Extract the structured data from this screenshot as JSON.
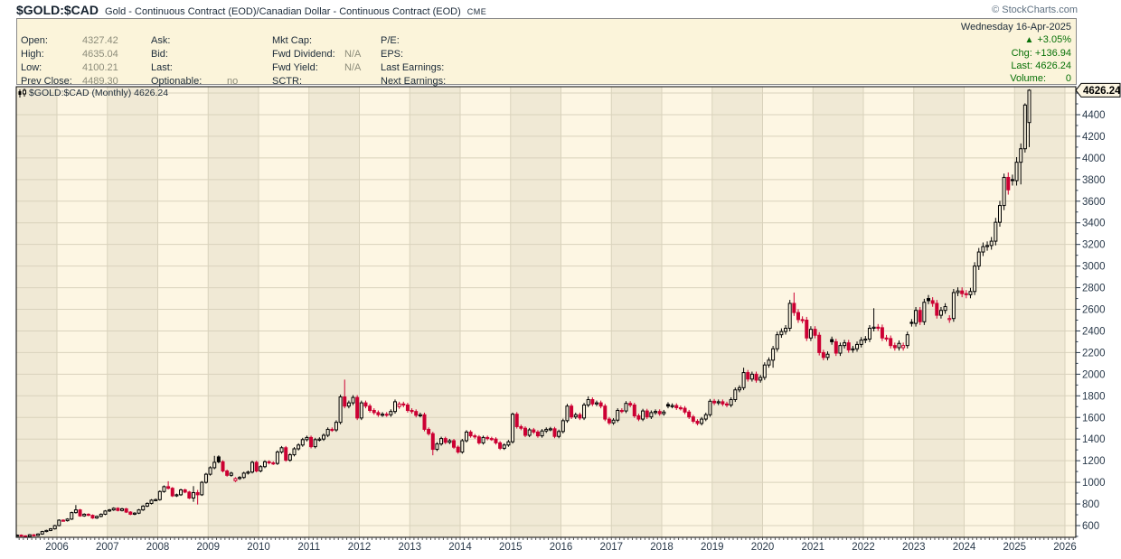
{
  "header": {
    "symbol": "$GOLD:$CAD",
    "description": "Gold - Continuous Contract (EOD)/Canadian Dollar - Continuous Contract (EOD)",
    "exchange": "CME",
    "copyright": "© StockCharts.com"
  },
  "quote_panel": {
    "col1": [
      {
        "label": "Open:",
        "value": "4327.42"
      },
      {
        "label": "High:",
        "value": "4635.04"
      },
      {
        "label": "Low:",
        "value": "4100.21"
      },
      {
        "label": "Prev Close:",
        "value": "4489.30"
      }
    ],
    "col2": [
      {
        "label": "Ask:",
        "value": ""
      },
      {
        "label": "Bid:",
        "value": ""
      },
      {
        "label": "Last:",
        "value": ""
      },
      {
        "label": "Optionable:",
        "value": "no"
      }
    ],
    "col3": [
      {
        "label": "Mkt Cap:",
        "value": ""
      },
      {
        "label": "Fwd Dividend:",
        "value": "N/A"
      },
      {
        "label": "Fwd Yield:",
        "value": "N/A"
      },
      {
        "label": "SCTR:",
        "value": ""
      }
    ],
    "col4": [
      {
        "label": "P/E:",
        "value": ""
      },
      {
        "label": "EPS:",
        "value": ""
      },
      {
        "label": "Last Earnings:",
        "value": ""
      },
      {
        "label": "Next Earnings:",
        "value": ""
      }
    ],
    "right": {
      "date": "Wednesday 16-Apr-2025",
      "direction": "▲",
      "percent": "+3.05%",
      "chg_label": "Chg:",
      "chg_value": "+136.94",
      "last_label": "Last:",
      "last_value": "4626.24",
      "volume_label": "Volume:",
      "volume_value": "0"
    }
  },
  "chart_data": {
    "type": "candlestick",
    "interval": "Monthly",
    "series_label": "$GOLD:$CAD (Monthly) 4626.24",
    "title": "$GOLD:$CAD Gold/Canadian Dollar monthly candlestick chart 2005-2025",
    "last_price": 4626.24,
    "start_year": 2005,
    "first_open": 512,
    "closes_by_year": {
      "2005": [
        510,
        505,
        512,
        505,
        500,
        515,
        508,
        522,
        545,
        555,
        570,
        600
      ],
      "2006": [
        650,
        645,
        660,
        720,
        745,
        690,
        705,
        695,
        670,
        685,
        705,
        735
      ],
      "2007": [
        745,
        760,
        740,
        755,
        725,
        705,
        715,
        745,
        780,
        805,
        835,
        840
      ],
      "2008": [
        915,
        960,
        945,
        875,
        885,
        930,
        910,
        855,
        905,
        885,
        1000,
        1075
      ],
      "2009": [
        1135,
        1185,
        1190,
        1105,
        1065,
        1085,
        1035,
        1045,
        1085,
        1095,
        1185,
        1105
      ],
      "2010": [
        1145,
        1190,
        1180,
        1175,
        1280,
        1320,
        1205,
        1255,
        1310,
        1345,
        1395,
        1415
      ],
      "2011": [
        1330,
        1395,
        1400,
        1435,
        1490,
        1485,
        1555,
        1790,
        1705,
        1735,
        1785,
        1595
      ],
      "2012": [
        1735,
        1705,
        1665,
        1645,
        1625,
        1630,
        1625,
        1655,
        1745,
        1725,
        1715,
        1665
      ],
      "2013": [
        1655,
        1620,
        1625,
        1490,
        1450,
        1305,
        1355,
        1405,
        1370,
        1385,
        1325,
        1280
      ],
      "2014": [
        1385,
        1465,
        1430,
        1420,
        1365,
        1415,
        1405,
        1400,
        1365,
        1315,
        1345,
        1375
      ],
      "2015": [
        1630,
        1515,
        1500,
        1435,
        1485,
        1465,
        1430,
        1475,
        1490,
        1495,
        1425,
        1470
      ],
      "2016": [
        1570,
        1705,
        1605,
        1625,
        1595,
        1715,
        1765,
        1725,
        1735,
        1705,
        1585,
        1550
      ],
      "2017": [
        1575,
        1665,
        1660,
        1730,
        1715,
        1615,
        1585,
        1660,
        1605,
        1645,
        1655,
        1635
      ],
      "2018": [
        1650,
        1705,
        1710,
        1690,
        1685,
        1650,
        1605,
        1565,
        1545,
        1585,
        1625,
        1750
      ],
      "2019": [
        1735,
        1745,
        1725,
        1715,
        1765,
        1855,
        1875,
        2015,
        1955,
        2000,
        1945,
        1970
      ],
      "2020": [
        2085,
        2130,
        2235,
        2365,
        2395,
        2425,
        2655,
        2570,
        2505,
        2500,
        2335,
        2415
      ],
      "2021": [
        2360,
        2200,
        2155,
        2185,
        2300,
        2195,
        2265,
        2290,
        2225,
        2235,
        2275,
        2315
      ],
      "2022": [
        2325,
        2425,
        2435,
        2430,
        2335,
        2330,
        2265,
        2245,
        2285,
        2265,
        2365,
        2470
      ],
      "2023": [
        2590,
        2485,
        2665,
        2680,
        2655,
        2545,
        2590,
        2625,
        2515,
        2755,
        2770,
        2745
      ],
      "2024": [
        2735,
        2765,
        3000,
        3130,
        3180,
        3190,
        3230,
        3405,
        3560,
        3820,
        3705,
        3790
      ],
      "2025": [
        3960,
        4085,
        4489.3,
        4626.24
      ]
    },
    "overrides": {
      "2006-05": {
        "high": 790
      },
      "2008-03": {
        "high": 1010
      },
      "2008-09": {
        "low": 820,
        "high": 965
      },
      "2008-10": {
        "low": 795,
        "high": 930
      },
      "2009-02": {
        "high": 1245
      },
      "2009-03": {
        "open": 1235
      },
      "2009-07": {
        "open": 1015
      },
      "2011-09": {
        "high": 1950
      },
      "2012-10": {
        "open": 1700
      },
      "2013-06": {
        "low": 1250
      },
      "2015-01": {
        "high": 1645
      },
      "2016-07": {
        "high": 1795
      },
      "2018-02": {
        "open": 1720
      },
      "2019-08": {
        "high": 2060
      },
      "2020-03": {
        "low": 2060
      },
      "2020-08": {
        "high": 2755
      },
      "2021-05": {
        "open": 2320
      },
      "2022-03": {
        "high": 2610
      },
      "2022-10": {
        "open": 2245
      },
      "2022-12": {
        "open": 2480
      },
      "2023-04": {
        "open": 2700
      },
      "2023-09": {
        "open": 2505
      },
      "2024-10": {
        "high": 3855
      },
      "2024-12": {
        "open": 3800
      },
      "2025-02": {
        "low": 3755
      },
      "2025-03": {
        "high": 4505,
        "low": 4050
      },
      "2025-04": {
        "open": 4327.42,
        "high": 4635.04,
        "low": 4100.21
      }
    },
    "y_ticks": [
      600,
      800,
      1000,
      1200,
      1400,
      1600,
      1800,
      2000,
      2200,
      2400,
      2600,
      2800,
      3000,
      3200,
      3400,
      3600,
      3800,
      4000,
      4200,
      4400
    ],
    "y_minor_tick_step": 100,
    "x_year_labels": [
      2006,
      2007,
      2008,
      2009,
      2010,
      2011,
      2012,
      2013,
      2014,
      2015,
      2016,
      2017,
      2018,
      2019,
      2020,
      2021,
      2022,
      2023,
      2024,
      2025,
      2026
    ],
    "ylim": [
      490,
      4660
    ],
    "grid": true,
    "legend_position": "top-left-inside",
    "colors": {
      "candle_red": "#CC0033",
      "candle_black": "#000000",
      "hollow_fill": "#FBF4E0",
      "band_light": "#FDF6E3",
      "band_dark": "#F0E9D5",
      "grid": "#D9D2BC",
      "axis_text": "#29394a",
      "label_text": "#1b2a38",
      "badge_bg": "#FDF6E3",
      "green": "#067006",
      "panel_bg": "#fbf4da"
    }
  }
}
